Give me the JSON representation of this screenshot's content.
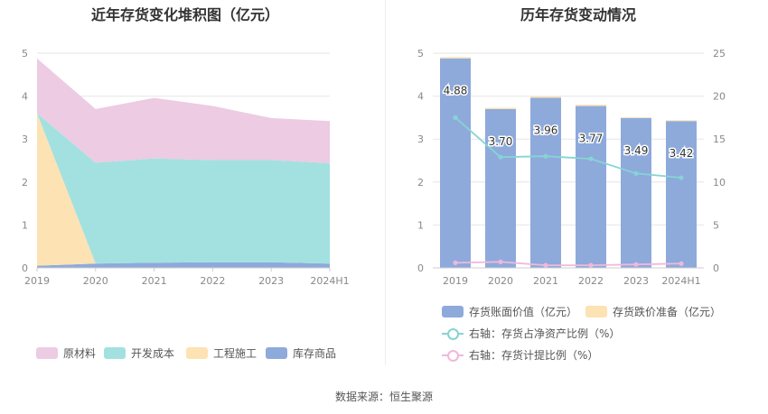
{
  "source": "数据来源：恒生聚源",
  "chart_data": [
    {
      "type": "area",
      "title": "近年存货变化堆积图（亿元）",
      "categories": [
        "2019",
        "2020",
        "2021",
        "2022",
        "2023",
        "2024H1"
      ],
      "ylim": [
        0,
        5
      ],
      "yticks": [
        0,
        1,
        2,
        3,
        4,
        5
      ],
      "stacked": true,
      "grid": true,
      "legend_position": "bottom",
      "series": [
        {
          "name": "库存商品",
          "color": "#8eaadb",
          "values": [
            0.05,
            0.1,
            0.12,
            0.13,
            0.13,
            0.1
          ]
        },
        {
          "name": "工程施工",
          "color": "#fde2b4",
          "values": [
            3.55,
            0.0,
            0.0,
            0.0,
            0.0,
            0.0
          ]
        },
        {
          "name": "开发成本",
          "color": "#a3e1e1",
          "values": [
            0.0,
            2.35,
            2.43,
            2.38,
            2.38,
            2.34
          ]
        },
        {
          "name": "原材料",
          "color": "#eccbe3",
          "values": [
            1.28,
            1.25,
            1.41,
            1.26,
            0.98,
            0.98
          ]
        }
      ],
      "legend_order": [
        "原材料",
        "开发成本",
        "工程施工",
        "库存商品"
      ]
    },
    {
      "type": "bar",
      "title": "历年存货变动情况",
      "categories": [
        "2019",
        "2020",
        "2021",
        "2022",
        "2023",
        "2024H1"
      ],
      "ylim": [
        0,
        5
      ],
      "yticks": [
        0,
        1,
        2,
        3,
        4,
        5
      ],
      "y2lim": [
        0,
        25
      ],
      "y2ticks": [
        0,
        5,
        10,
        15,
        20,
        25
      ],
      "grid": true,
      "legend_position": "bottom",
      "bar_series": [
        {
          "name": "存货账面价值（亿元）",
          "color": "#8eaadb",
          "values": [
            4.88,
            3.7,
            3.96,
            3.77,
            3.49,
            3.42
          ],
          "labels": [
            "4.88",
            "3.70",
            "3.96",
            "3.77",
            "3.49",
            "3.42"
          ]
        },
        {
          "name": "存货跌价准备（亿元）",
          "color": "#fde2b4",
          "values": [
            0.03,
            0.03,
            0.03,
            0.03,
            0.02,
            0.02
          ]
        }
      ],
      "line_series": [
        {
          "name": "右轴：存货占净资产比例（%）",
          "color": "#86d4d4",
          "values": [
            17.5,
            12.9,
            13.0,
            12.7,
            11.0,
            10.5
          ]
        },
        {
          "name": "右轴：存货计提比例（%）",
          "color": "#f0b8dc",
          "values": [
            0.6,
            0.7,
            0.3,
            0.3,
            0.4,
            0.5
          ]
        }
      ]
    }
  ]
}
